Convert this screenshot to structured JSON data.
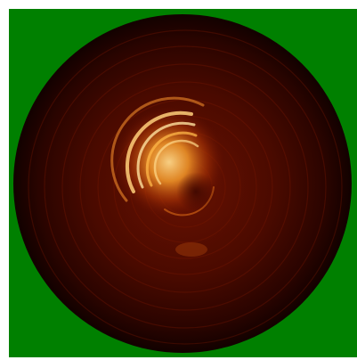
{
  "image": {
    "description_colors": {
      "background": "#008000",
      "disk_dark": "#1a0200",
      "disk_mid": "#5a0d00",
      "glow_hot": "#ffd27a",
      "glow_warm": "#f07a1a"
    }
  }
}
